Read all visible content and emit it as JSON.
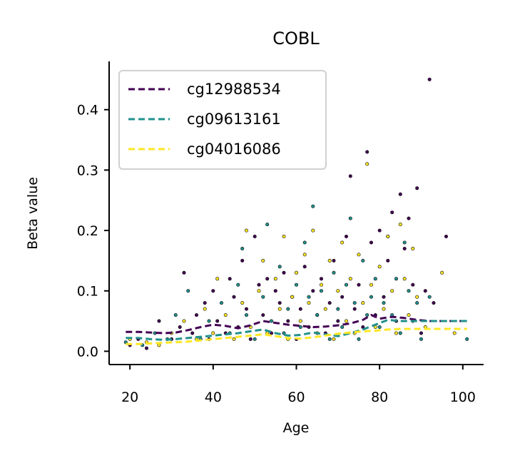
{
  "chart_data": {
    "type": "scatter",
    "title": "COBL",
    "xlabel": "Age",
    "ylabel": "Beta value",
    "xlim": [
      15,
      105
    ],
    "ylim": [
      -0.022,
      0.48
    ],
    "xticks": [
      20,
      40,
      60,
      80,
      100
    ],
    "yticks": [
      0.0,
      0.1,
      0.2,
      0.3,
      0.4
    ],
    "xtick_labels": [
      "20",
      "40",
      "60",
      "80",
      "100"
    ],
    "ytick_labels": [
      "0.0",
      "0.1",
      "0.2",
      "0.3",
      "0.4"
    ],
    "legend_position": "top-left",
    "grid": false,
    "series": [
      {
        "name": "cg12988534",
        "color": "#440154",
        "trend": {
          "x": [
            19,
            22,
            25,
            28,
            31,
            34,
            37,
            40,
            43,
            46,
            49,
            52,
            55,
            58,
            61,
            64,
            67,
            70,
            73,
            76,
            78,
            80,
            83,
            86,
            89,
            92,
            95,
            98,
            101
          ],
          "y": [
            0.032,
            0.032,
            0.031,
            0.03,
            0.031,
            0.035,
            0.04,
            0.044,
            0.042,
            0.038,
            0.043,
            0.05,
            0.047,
            0.044,
            0.042,
            0.04,
            0.041,
            0.043,
            0.046,
            0.052,
            0.06,
            0.054,
            0.057,
            0.055,
            0.052,
            0.05,
            0.05,
            0.05,
            0.05
          ]
        },
        "points": [
          [
            20,
            0.01
          ],
          [
            22,
            0.02
          ],
          [
            24,
            0.005
          ],
          [
            27,
            0.05
          ],
          [
            30,
            0.02
          ],
          [
            32,
            0.04
          ],
          [
            33,
            0.13
          ],
          [
            35,
            0.03
          ],
          [
            36,
            0.06
          ],
          [
            38,
            0.08
          ],
          [
            39,
            0.02
          ],
          [
            40,
            0.1
          ],
          [
            41,
            0.05
          ],
          [
            43,
            0.03
          ],
          [
            44,
            0.12
          ],
          [
            45,
            0.09
          ],
          [
            46,
            0.04
          ],
          [
            47,
            0.15
          ],
          [
            48,
            0.07
          ],
          [
            49,
            0.02
          ],
          [
            50,
            0.19
          ],
          [
            51,
            0.11
          ],
          [
            52,
            0.06
          ],
          [
            53,
            0.12
          ],
          [
            54,
            0.03
          ],
          [
            55,
            0.1
          ],
          [
            56,
            0.08
          ],
          [
            57,
            0.13
          ],
          [
            58,
            0.05
          ],
          [
            59,
            0.09
          ],
          [
            60,
            0.02
          ],
          [
            61,
            0.07
          ],
          [
            62,
            0.14
          ],
          [
            63,
            0.04
          ],
          [
            64,
            0.1
          ],
          [
            65,
            0.06
          ],
          [
            66,
            0.12
          ],
          [
            67,
            0.03
          ],
          [
            68,
            0.08
          ],
          [
            69,
            0.15
          ],
          [
            70,
            0.05
          ],
          [
            71,
            0.09
          ],
          [
            72,
            0.19
          ],
          [
            73,
            0.29
          ],
          [
            74,
            0.07
          ],
          [
            75,
            0.11
          ],
          [
            76,
            0.04
          ],
          [
            77,
            0.33
          ],
          [
            78,
            0.18
          ],
          [
            79,
            0.06
          ],
          [
            80,
            0.2
          ],
          [
            81,
            0.09
          ],
          [
            82,
            0.15
          ],
          [
            83,
            0.23
          ],
          [
            84,
            0.05
          ],
          [
            85,
            0.26
          ],
          [
            86,
            0.17
          ],
          [
            87,
            0.22
          ],
          [
            88,
            0.11
          ],
          [
            89,
            0.27
          ],
          [
            90,
            0.03
          ],
          [
            91,
            0.1
          ],
          [
            92,
            0.45
          ],
          [
            93,
            0.08
          ],
          [
            96,
            0.19
          ]
        ]
      },
      {
        "name": "cg09613161",
        "color": "#21918c",
        "trend": {
          "x": [
            19,
            22,
            25,
            28,
            31,
            34,
            37,
            40,
            43,
            46,
            49,
            52,
            55,
            58,
            61,
            64,
            67,
            70,
            73,
            76,
            79,
            82,
            85,
            88,
            91,
            94,
            97,
            101
          ],
          "y": [
            0.022,
            0.022,
            0.02,
            0.019,
            0.02,
            0.022,
            0.024,
            0.026,
            0.028,
            0.03,
            0.033,
            0.036,
            0.03,
            0.026,
            0.027,
            0.031,
            0.028,
            0.025,
            0.03,
            0.036,
            0.044,
            0.052,
            0.05,
            0.05,
            0.05,
            0.05,
            0.05,
            0.05
          ]
        },
        "points": [
          [
            19,
            0.015
          ],
          [
            23,
            0.01
          ],
          [
            26,
            0.03
          ],
          [
            29,
            0.02
          ],
          [
            31,
            0.06
          ],
          [
            34,
            0.1
          ],
          [
            37,
            0.02
          ],
          [
            39,
            0.05
          ],
          [
            42,
            0.08
          ],
          [
            44,
            0.03
          ],
          [
            46,
            0.11
          ],
          [
            47,
            0.17
          ],
          [
            48,
            0.06
          ],
          [
            50,
            0.02
          ],
          [
            52,
            0.09
          ],
          [
            53,
            0.21
          ],
          [
            54,
            0.05
          ],
          [
            56,
            0.14
          ],
          [
            57,
            0.03
          ],
          [
            58,
            0.07
          ],
          [
            60,
            0.11
          ],
          [
            61,
            0.04
          ],
          [
            62,
            0.18
          ],
          [
            63,
            0.09
          ],
          [
            64,
            0.24
          ],
          [
            65,
            0.06
          ],
          [
            66,
            0.1
          ],
          [
            68,
            0.02
          ],
          [
            69,
            0.13
          ],
          [
            70,
            0.07
          ],
          [
            71,
            0.04
          ],
          [
            72,
            0.11
          ],
          [
            73,
            0.22
          ],
          [
            74,
            0.08
          ],
          [
            75,
            0.02
          ],
          [
            76,
            0.15
          ],
          [
            77,
            0.06
          ],
          [
            78,
            0.09
          ],
          [
            79,
            0.12
          ],
          [
            80,
            0.04
          ],
          [
            81,
            0.08
          ],
          [
            82,
            0.19
          ],
          [
            83,
            0.06
          ],
          [
            84,
            0.12
          ],
          [
            85,
            0.03
          ],
          [
            86,
            0.18
          ],
          [
            87,
            0.1
          ],
          [
            88,
            0.05
          ],
          [
            89,
            0.08
          ],
          [
            90,
            0.02
          ],
          [
            92,
            0.09
          ],
          [
            101,
            0.02
          ]
        ]
      },
      {
        "name": "cg04016086",
        "color": "#fde725",
        "trend": {
          "x": [
            19,
            22,
            25,
            28,
            31,
            34,
            37,
            40,
            43,
            46,
            49,
            52,
            55,
            58,
            61,
            64,
            67,
            70,
            73,
            76,
            79,
            82,
            85,
            88,
            91,
            94,
            97,
            101
          ],
          "y": [
            0.012,
            0.012,
            0.013,
            0.014,
            0.015,
            0.016,
            0.018,
            0.02,
            0.022,
            0.024,
            0.026,
            0.028,
            0.025,
            0.022,
            0.021,
            0.023,
            0.026,
            0.029,
            0.031,
            0.033,
            0.034,
            0.036,
            0.037,
            0.037,
            0.037,
            0.037,
            0.037,
            0.037
          ]
        },
        "points": [
          [
            20,
            0.02
          ],
          [
            24,
            0.015
          ],
          [
            27,
            0.01
          ],
          [
            30,
            0.03
          ],
          [
            33,
            0.05
          ],
          [
            36,
            0.02
          ],
          [
            38,
            0.07
          ],
          [
            40,
            0.03
          ],
          [
            41,
            0.12
          ],
          [
            43,
            0.06
          ],
          [
            45,
            0.02
          ],
          [
            47,
            0.08
          ],
          [
            48,
            0.2
          ],
          [
            49,
            0.04
          ],
          [
            51,
            0.1
          ],
          [
            52,
            0.15
          ],
          [
            53,
            0.03
          ],
          [
            55,
            0.12
          ],
          [
            56,
            0.07
          ],
          [
            57,
            0.19
          ],
          [
            58,
            0.02
          ],
          [
            59,
            0.09
          ],
          [
            60,
            0.13
          ],
          [
            61,
            0.05
          ],
          [
            62,
            0.16
          ],
          [
            63,
            0.08
          ],
          [
            64,
            0.2
          ],
          [
            65,
            0.03
          ],
          [
            66,
            0.11
          ],
          [
            67,
            0.07
          ],
          [
            68,
            0.15
          ],
          [
            69,
            0.02
          ],
          [
            70,
            0.1
          ],
          [
            71,
            0.18
          ],
          [
            72,
            0.05
          ],
          [
            73,
            0.12
          ],
          [
            74,
            0.03
          ],
          [
            75,
            0.16
          ],
          [
            76,
            0.08
          ],
          [
            77,
            0.31
          ],
          [
            78,
            0.11
          ],
          [
            79,
            0.04
          ],
          [
            80,
            0.14
          ],
          [
            81,
            0.07
          ],
          [
            82,
            0.19
          ],
          [
            83,
            0.1
          ],
          [
            84,
            0.03
          ],
          [
            85,
            0.21
          ],
          [
            86,
            0.12
          ],
          [
            87,
            0.06
          ],
          [
            88,
            0.17
          ],
          [
            89,
            0.09
          ],
          [
            91,
            0.04
          ],
          [
            95,
            0.13
          ],
          [
            98,
            0.03
          ]
        ]
      }
    ]
  }
}
